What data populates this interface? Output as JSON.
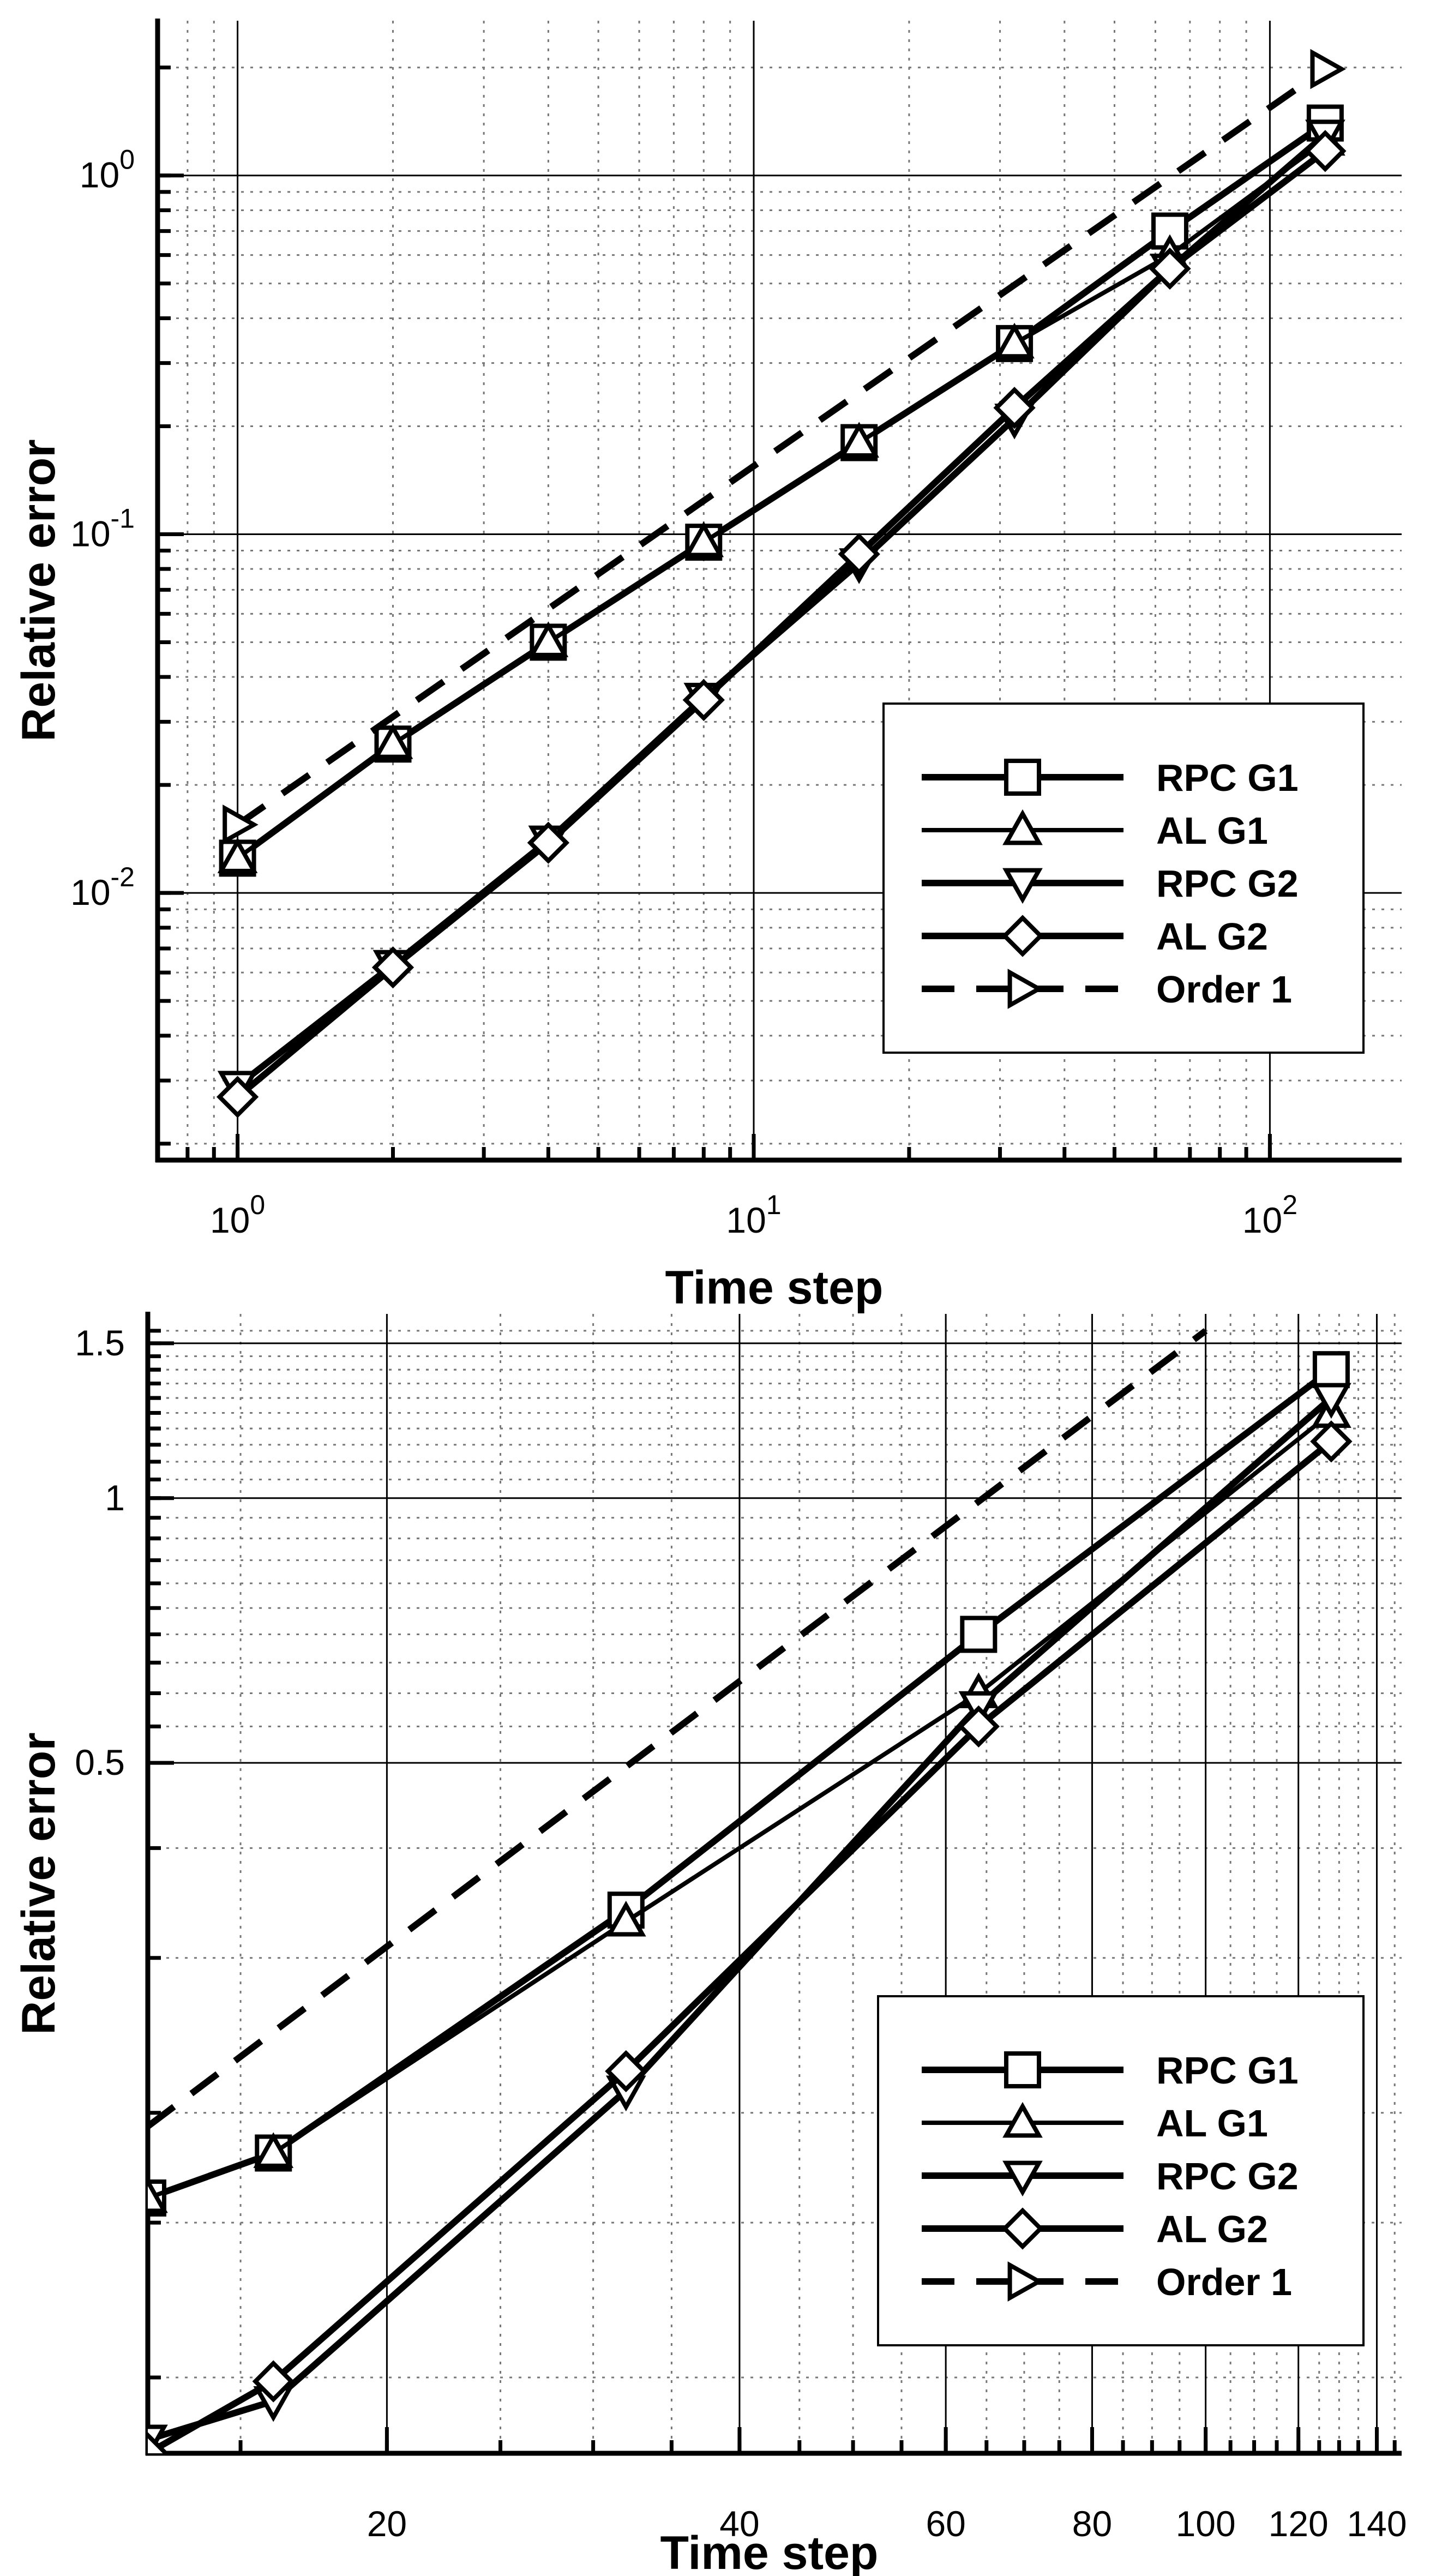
{
  "chart_data": [
    {
      "type": "line",
      "scale": "log-log",
      "xlabel": "Time step",
      "ylabel": "Relative error",
      "xlim": [
        0.7,
        180
      ],
      "ylim": [
        0.0018,
        2.7
      ],
      "xticks": [
        {
          "value": 1,
          "base": "10",
          "exp": "0"
        },
        {
          "value": 10,
          "base": "10",
          "exp": "1"
        },
        {
          "value": 100,
          "base": "10",
          "exp": "2"
        }
      ],
      "yticks": [
        {
          "value": 0.01,
          "base": "10",
          "exp": "-2"
        },
        {
          "value": 0.1,
          "base": "10",
          "exp": "-1"
        },
        {
          "value": 1,
          "base": "10",
          "exp": "0"
        }
      ],
      "legend_position": "lower-right",
      "series": [
        {
          "name": "RPC G1",
          "marker": "square",
          "style": "solid-thick",
          "x": [
            1,
            2,
            4,
            8,
            16,
            32,
            64,
            128
          ],
          "values": [
            0.0125,
            0.026,
            0.05,
            0.095,
            0.18,
            0.34,
            0.7,
            1.4
          ]
        },
        {
          "name": "AL G1",
          "marker": "triangle-up",
          "style": "solid-thin",
          "x": [
            1,
            2,
            4,
            8,
            16,
            32,
            64,
            128
          ],
          "values": [
            0.0125,
            0.026,
            0.05,
            0.095,
            0.18,
            0.34,
            0.6,
            1.25
          ]
        },
        {
          "name": "RPC G2",
          "marker": "triangle-down",
          "style": "solid-thick",
          "x": [
            1,
            2,
            4,
            8,
            16,
            32,
            64,
            128
          ],
          "values": [
            0.0029,
            0.0063,
            0.014,
            0.035,
            0.083,
            0.21,
            0.55,
            1.3
          ]
        },
        {
          "name": "AL G2",
          "marker": "diamond",
          "style": "solid-thick",
          "x": [
            1,
            2,
            4,
            8,
            16,
            32,
            64,
            128
          ],
          "values": [
            0.0027,
            0.0062,
            0.0138,
            0.0345,
            0.088,
            0.225,
            0.55,
            1.17
          ]
        },
        {
          "name": "Order 1",
          "marker": "triangle-right",
          "style": "dashed",
          "x": [
            1,
            128
          ],
          "values": [
            0.0155,
            1.98
          ]
        }
      ]
    },
    {
      "type": "line",
      "scale": "log-log",
      "xlabel": "Time step",
      "ylabel": "Relative error",
      "xlim": [
        12.5,
        147
      ],
      "ylim": [
        0.082,
        1.62
      ],
      "xticks": [
        {
          "value": 20,
          "label": "20"
        },
        {
          "value": 40,
          "label": "40"
        },
        {
          "value": 60,
          "label": "60"
        },
        {
          "value": 80,
          "label": "80"
        },
        {
          "value": 100,
          "label": "100"
        },
        {
          "value": 120,
          "label": "120"
        },
        {
          "value": 140,
          "label": "140"
        }
      ],
      "yticks": [
        {
          "value": 0.5,
          "label": "0.5"
        },
        {
          "value": 1,
          "label": "1"
        },
        {
          "value": 1.5,
          "label": "1.5"
        }
      ],
      "legend_position": "lower-right",
      "series": [
        {
          "name": "RPC G1",
          "marker": "square",
          "style": "solid-thick",
          "x": [
            12.5,
            16,
            32,
            64,
            128
          ],
          "values": [
            0.16,
            0.18,
            0.34,
            0.7,
            1.4
          ]
        },
        {
          "name": "AL G1",
          "marker": "triangle-up",
          "style": "solid-thin",
          "x": [
            12.5,
            16,
            32,
            64,
            128
          ],
          "values": [
            0.16,
            0.18,
            0.33,
            0.6,
            1.25
          ]
        },
        {
          "name": "RPC G2",
          "marker": "triangle-down",
          "style": "solid-thick",
          "x": [
            12.5,
            16,
            32,
            64,
            128
          ],
          "values": [
            0.085,
            0.094,
            0.212,
            0.58,
            1.3
          ]
        },
        {
          "name": "AL G2",
          "marker": "diamond",
          "style": "solid-thick",
          "x": [
            12.5,
            16,
            32,
            64,
            128
          ],
          "values": [
            0.082,
            0.099,
            0.223,
            0.55,
            1.16
          ]
        },
        {
          "name": "Order 1",
          "marker": "none",
          "style": "dashed",
          "x": [
            12.5,
            100
          ],
          "values": [
            0.193,
            1.55
          ]
        }
      ],
      "legend_entries": [
        {
          "name": "RPC G1",
          "marker": "square",
          "style": "solid-thick"
        },
        {
          "name": "AL G1",
          "marker": "triangle-up",
          "style": "solid-thin"
        },
        {
          "name": "RPC G2",
          "marker": "triangle-down",
          "style": "solid-thick"
        },
        {
          "name": "AL G2",
          "marker": "diamond",
          "style": "solid-thick"
        },
        {
          "name": "Order 1",
          "marker": "triangle-right",
          "style": "dashed"
        }
      ]
    }
  ]
}
